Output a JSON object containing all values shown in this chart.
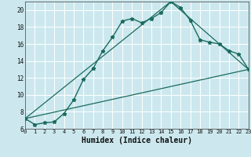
{
  "xlabel": "Humidex (Indice chaleur)",
  "bg_color": "#cce8ee",
  "grid_color": "#ffffff",
  "line_color": "#1a6b5e",
  "x_min": 0,
  "x_max": 23,
  "y_min": 6,
  "y_max": 21,
  "yticks": [
    6,
    8,
    10,
    12,
    14,
    16,
    18,
    20
  ],
  "xticks": [
    0,
    1,
    2,
    3,
    4,
    5,
    6,
    7,
    8,
    9,
    10,
    11,
    12,
    13,
    14,
    15,
    16,
    17,
    18,
    19,
    20,
    21,
    22,
    23
  ],
  "series1_x": [
    0,
    1,
    2,
    3,
    4,
    5,
    6,
    7,
    8,
    9,
    10,
    11,
    12,
    13,
    14,
    15,
    16,
    17,
    18,
    19,
    20,
    21,
    22,
    23
  ],
  "series1_y": [
    7.2,
    6.5,
    6.7,
    6.8,
    7.8,
    9.4,
    11.8,
    13.1,
    15.2,
    16.8,
    18.7,
    19.0,
    18.5,
    19.0,
    19.7,
    21.0,
    20.3,
    18.8,
    16.5,
    16.2,
    16.0,
    15.2,
    14.8,
    13.0
  ],
  "series2_x": [
    0,
    15,
    23
  ],
  "series2_y": [
    7.2,
    21.0,
    13.0
  ],
  "series3_x": [
    0,
    23
  ],
  "series3_y": [
    7.2,
    13.0
  ]
}
